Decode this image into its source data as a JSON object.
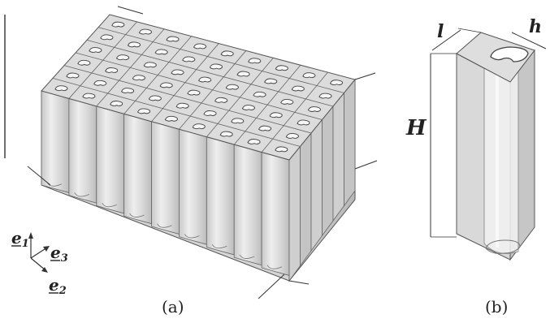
{
  "figure": {
    "caption_a": "(a)",
    "caption_b": "(b)"
  },
  "axes": {
    "e1": {
      "base": "e",
      "sub": "1"
    },
    "e3": {
      "base": "e",
      "sub": "3"
    },
    "e2": {
      "base": "e",
      "sub": "2"
    }
  },
  "dimensions": {
    "length_label": "l",
    "width_label": "h",
    "height_label": "H"
  },
  "lattice": {
    "columns": 9,
    "rows": 6
  },
  "colors": {
    "cell_fill": "#d9d9d9",
    "cell_fill_dark": "#bfbfbf",
    "edge": "#555555",
    "guide": "#333333"
  }
}
